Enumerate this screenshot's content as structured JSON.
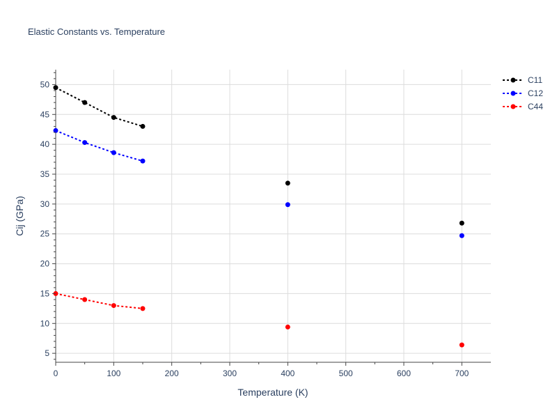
{
  "chart_data": {
    "type": "line",
    "title": "Elastic Constants vs. Temperature",
    "xlabel": "Temperature (K)",
    "ylabel": "Cij (GPa)",
    "xlim": [
      0,
      750
    ],
    "ylim": [
      3.5,
      52.5
    ],
    "xticks": [
      0,
      100,
      200,
      300,
      400,
      500,
      600,
      700
    ],
    "yticks": [
      5,
      10,
      15,
      20,
      25,
      30,
      35,
      40,
      45,
      50
    ],
    "grid": true,
    "legend_position": "top-right",
    "series": [
      {
        "name": "C11",
        "color": "#000000",
        "line_points": [
          [
            0,
            49.5
          ],
          [
            50,
            47.0
          ],
          [
            100,
            44.5
          ],
          [
            150,
            43.0
          ]
        ],
        "marker_points": [
          [
            0,
            49.5
          ],
          [
            50,
            47.0
          ],
          [
            100,
            44.5
          ],
          [
            150,
            43.0
          ],
          [
            400,
            33.5
          ],
          [
            700,
            26.8
          ]
        ]
      },
      {
        "name": "C12",
        "color": "#0000ff",
        "line_points": [
          [
            0,
            42.3
          ],
          [
            50,
            40.3
          ],
          [
            100,
            38.6
          ],
          [
            150,
            37.2
          ]
        ],
        "marker_points": [
          [
            0,
            42.3
          ],
          [
            50,
            40.3
          ],
          [
            100,
            38.6
          ],
          [
            150,
            37.2
          ],
          [
            400,
            29.9
          ],
          [
            700,
            24.7
          ]
        ]
      },
      {
        "name": "C44",
        "color": "#ff0000",
        "line_points": [
          [
            0,
            15.0
          ],
          [
            50,
            14.0
          ],
          [
            100,
            13.0
          ],
          [
            150,
            12.5
          ]
        ],
        "marker_points": [
          [
            0,
            15.0
          ],
          [
            50,
            14.0
          ],
          [
            100,
            13.0
          ],
          [
            150,
            12.5
          ],
          [
            400,
            9.4
          ],
          [
            700,
            6.4
          ]
        ]
      }
    ]
  }
}
